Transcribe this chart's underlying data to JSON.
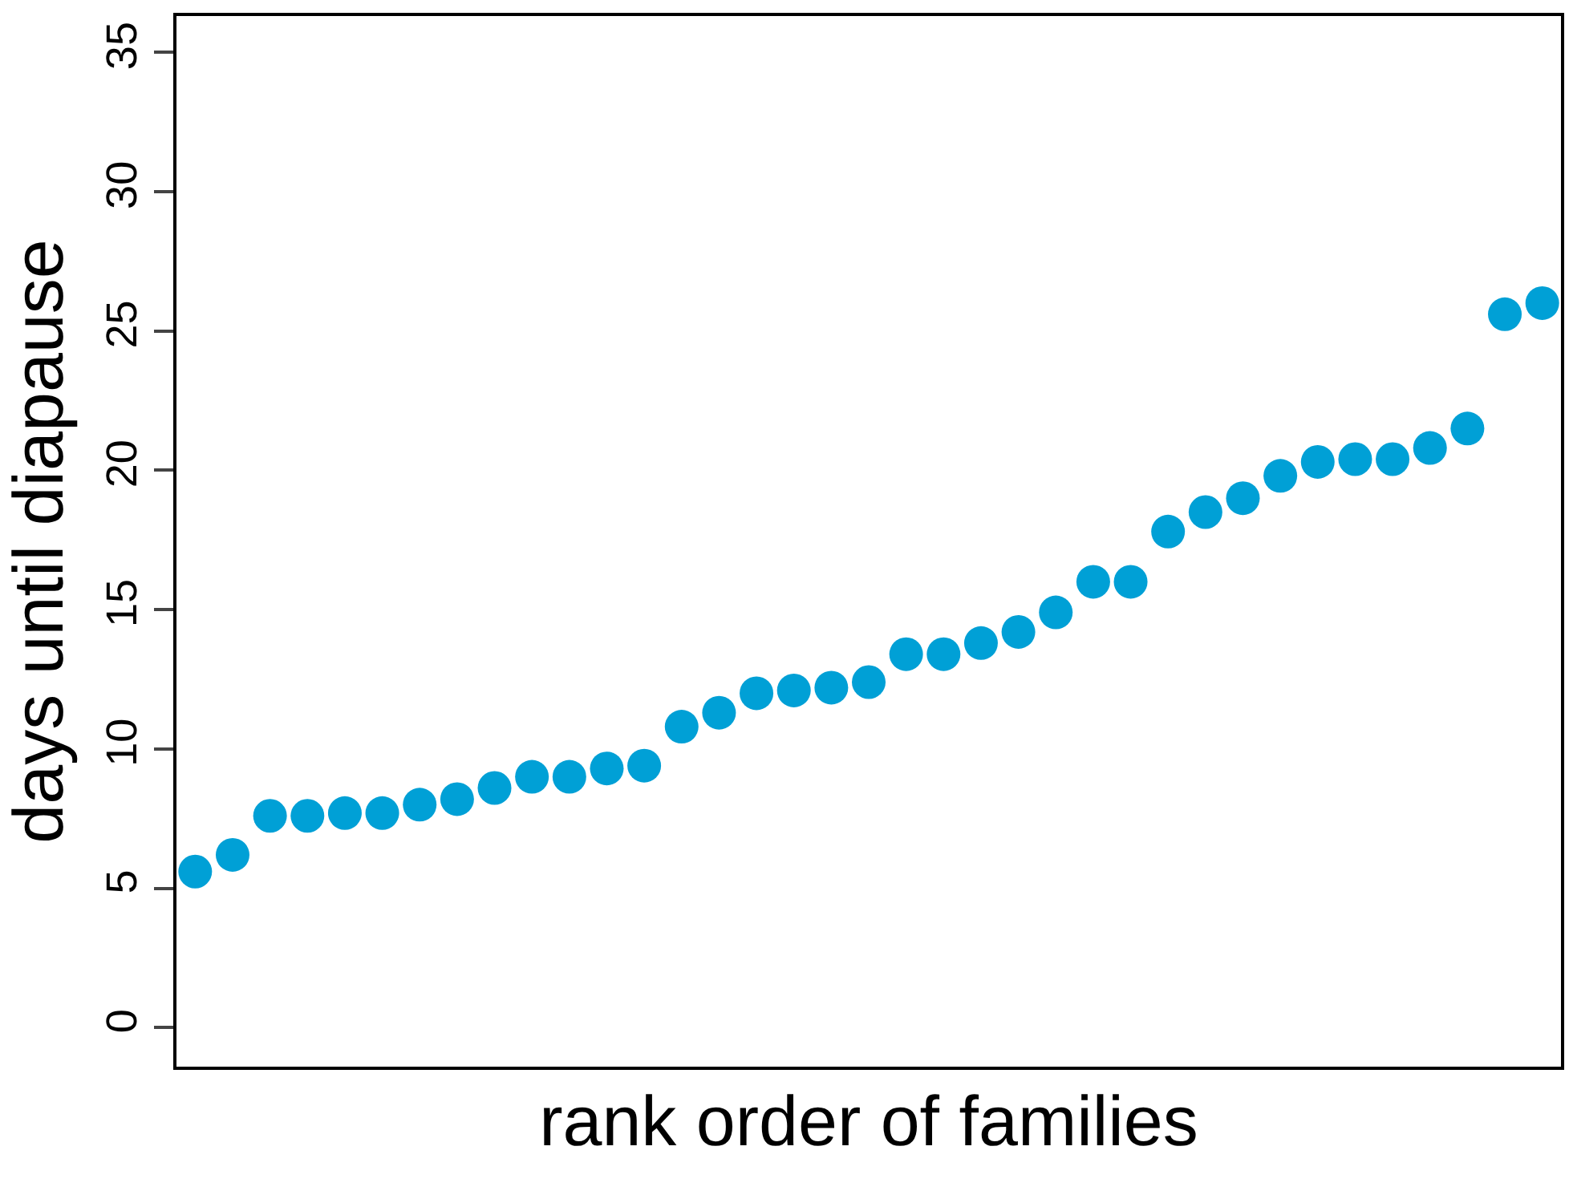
{
  "chart_data": {
    "type": "scatter",
    "xlabel": "rank order of families",
    "ylabel": "days until diapause",
    "categories": [
      null,
      null,
      null,
      null,
      null,
      null,
      null,
      null,
      null,
      null,
      null,
      null,
      null,
      null,
      null,
      null,
      null,
      null,
      null,
      null,
      null,
      null,
      null,
      null,
      null,
      null,
      null,
      null,
      null,
      null,
      null,
      null,
      null,
      null,
      null,
      null,
      null
    ],
    "series": [
      {
        "color": "#00a0d6",
        "values": [
          5.6,
          6.2,
          7.6,
          7.6,
          7.7,
          7.7,
          8.0,
          8.2,
          8.6,
          9.0,
          9.0,
          9.3,
          9.4,
          10.8,
          11.3,
          12.0,
          12.1,
          12.2,
          12.4,
          13.4,
          13.4,
          13.8,
          14.2,
          14.9,
          16.0,
          16.0,
          17.8,
          18.5,
          19.0,
          19.8,
          20.3,
          20.4,
          20.4,
          20.8,
          21.5,
          25.6,
          26.0
        ]
      }
    ],
    "ylim": [
      -1.4,
      36.3
    ],
    "yticks": [
      0,
      5,
      10,
      15,
      20,
      25,
      30,
      35
    ],
    "marker": "circle",
    "tick_labels": "y"
  }
}
